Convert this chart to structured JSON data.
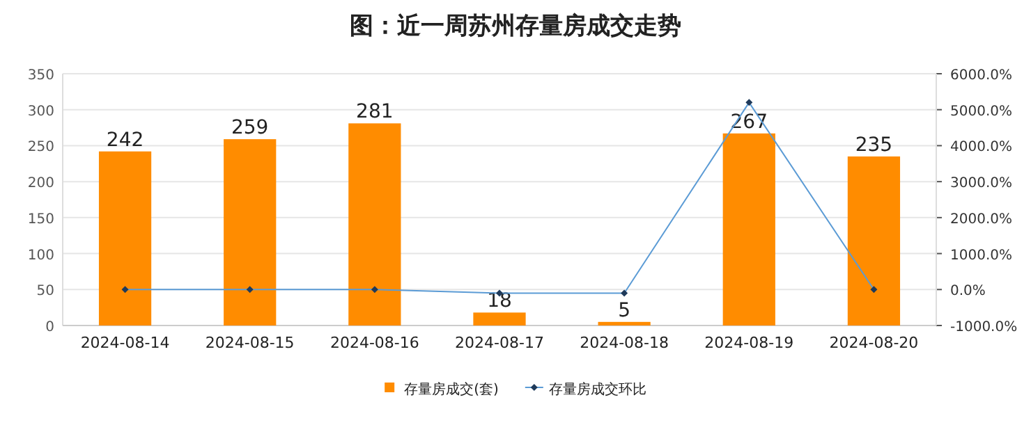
{
  "chart_data": {
    "type": "bar",
    "title": "图：近一周苏州存量房成交走势",
    "categories": [
      "2024-08-14",
      "2024-08-15",
      "2024-08-16",
      "2024-08-17",
      "2024-08-18",
      "2024-08-19",
      "2024-08-20"
    ],
    "series": [
      {
        "name": "存量房成交(套)",
        "color": "#ff8c00",
        "values": [
          242,
          259,
          281,
          18,
          5,
          267,
          235
        ],
        "value_labels": [
          "242",
          "259",
          "281",
          "18",
          "5",
          "267",
          "235"
        ]
      },
      {
        "name": "存量房成交环比",
        "type": "line",
        "axis": "y2",
        "color": "#5b9bd5",
        "marker": "diamond",
        "values": [
          0,
          0,
          0,
          -100,
          -100,
          5200,
          0
        ]
      }
    ],
    "ylim": [
      0,
      350
    ],
    "yticks": [
      0,
      50,
      100,
      150,
      200,
      250,
      300,
      350
    ],
    "y2lim": [
      -1000,
      6000
    ],
    "y2ticks": [
      {
        "value": -1000,
        "label": "-1000.0%"
      },
      {
        "value": 0,
        "label": "0.0%"
      },
      {
        "value": 1000,
        "label": "1000.0%"
      },
      {
        "value": 2000,
        "label": "2000.0%"
      },
      {
        "value": 3000,
        "label": "3000.0%"
      },
      {
        "value": 4000,
        "label": "4000.0%"
      },
      {
        "value": 5000,
        "label": "5000.0%"
      },
      {
        "value": 6000,
        "label": "6000.0%"
      }
    ],
    "grid": "y",
    "legend": "bottom"
  }
}
